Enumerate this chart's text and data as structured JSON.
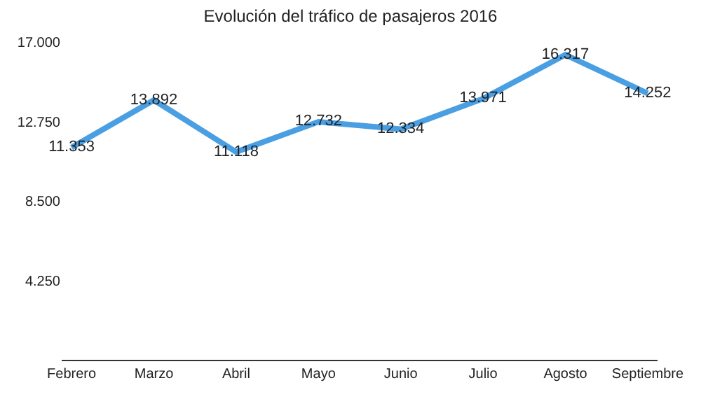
{
  "chart_data": {
    "type": "line",
    "title": "Evolución del tráfico de pasajeros 2016",
    "categories": [
      "Febrero",
      "Marzo",
      "Abril",
      "Mayo",
      "Junio",
      "Julio",
      "Agosto",
      "Septiembre"
    ],
    "series": [
      {
        "color": "#4a9fe3",
        "values": [
          11353,
          13892,
          11118,
          12732,
          12334,
          13971,
          16317,
          14252
        ],
        "value_labels": [
          "11.353",
          "13.892",
          "11.118",
          "12.732",
          "12.334",
          "13.971",
          "16.317",
          "14.252"
        ]
      }
    ],
    "ylim": [
      0,
      17000
    ],
    "yticks": [
      {
        "value": 4250,
        "label": "4.250"
      },
      {
        "value": 8500,
        "label": "8.500"
      },
      {
        "value": 12750,
        "label": "12.750"
      },
      {
        "value": 17000,
        "label": "17.000"
      }
    ],
    "legend": false,
    "marker": "none",
    "line_style": "solid"
  }
}
